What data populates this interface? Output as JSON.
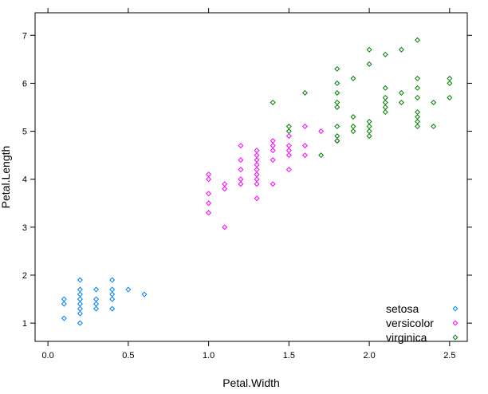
{
  "chart_data": {
    "type": "scatter",
    "xlabel": "Petal.Width",
    "ylabel": "Petal.Length",
    "xlim": [
      -0.08,
      2.61
    ],
    "ylim": [
      0.62,
      7.47
    ],
    "xticks": [
      "0.0",
      "0.5",
      "1.0",
      "1.5",
      "2.0",
      "2.5"
    ],
    "xtick_values": [
      0,
      0.5,
      1,
      1.5,
      2,
      2.5
    ],
    "yticks": [
      "1",
      "2",
      "3",
      "4",
      "5",
      "6",
      "7"
    ],
    "ytick_values": [
      1,
      2,
      3,
      4,
      5,
      6,
      7
    ],
    "grid": false,
    "marker": "diamond",
    "legend_position": "bottom-right",
    "series": [
      {
        "name": "setosa",
        "color": "#0080FF",
        "points": [
          [
            0.1,
            1.1
          ],
          [
            0.1,
            1.4
          ],
          [
            0.1,
            1.5
          ],
          [
            0.2,
            1.0
          ],
          [
            0.2,
            1.2
          ],
          [
            0.2,
            1.3
          ],
          [
            0.2,
            1.4
          ],
          [
            0.2,
            1.5
          ],
          [
            0.2,
            1.6
          ],
          [
            0.2,
            1.7
          ],
          [
            0.2,
            1.9
          ],
          [
            0.3,
            1.3
          ],
          [
            0.3,
            1.4
          ],
          [
            0.3,
            1.5
          ],
          [
            0.3,
            1.7
          ],
          [
            0.4,
            1.3
          ],
          [
            0.4,
            1.5
          ],
          [
            0.4,
            1.6
          ],
          [
            0.4,
            1.7
          ],
          [
            0.4,
            1.9
          ],
          [
            0.5,
            1.7
          ],
          [
            0.6,
            1.6
          ]
        ]
      },
      {
        "name": "versicolor",
        "color": "#FF00FF",
        "points": [
          [
            1.0,
            3.3
          ],
          [
            1.0,
            3.5
          ],
          [
            1.0,
            3.7
          ],
          [
            1.0,
            4.0
          ],
          [
            1.0,
            4.1
          ],
          [
            1.1,
            3.0
          ],
          [
            1.1,
            3.8
          ],
          [
            1.1,
            3.9
          ],
          [
            1.2,
            3.9
          ],
          [
            1.2,
            4.0
          ],
          [
            1.2,
            4.2
          ],
          [
            1.2,
            4.4
          ],
          [
            1.2,
            4.7
          ],
          [
            1.3,
            3.6
          ],
          [
            1.3,
            3.9
          ],
          [
            1.3,
            4.0
          ],
          [
            1.3,
            4.1
          ],
          [
            1.3,
            4.2
          ],
          [
            1.3,
            4.3
          ],
          [
            1.3,
            4.4
          ],
          [
            1.3,
            4.5
          ],
          [
            1.3,
            4.6
          ],
          [
            1.4,
            3.9
          ],
          [
            1.4,
            4.4
          ],
          [
            1.4,
            4.6
          ],
          [
            1.4,
            4.7
          ],
          [
            1.4,
            4.8
          ],
          [
            1.5,
            4.2
          ],
          [
            1.5,
            4.5
          ],
          [
            1.5,
            4.6
          ],
          [
            1.5,
            4.7
          ],
          [
            1.5,
            4.9
          ],
          [
            1.6,
            4.5
          ],
          [
            1.6,
            4.7
          ],
          [
            1.6,
            5.1
          ],
          [
            1.7,
            5.0
          ],
          [
            1.8,
            4.8
          ]
        ]
      },
      {
        "name": "virginica",
        "color": "#008000",
        "points": [
          [
            1.4,
            5.6
          ],
          [
            1.5,
            5.0
          ],
          [
            1.5,
            5.1
          ],
          [
            1.6,
            5.8
          ],
          [
            1.7,
            4.5
          ],
          [
            1.8,
            4.8
          ],
          [
            1.8,
            4.9
          ],
          [
            1.8,
            5.1
          ],
          [
            1.8,
            5.5
          ],
          [
            1.8,
            5.6
          ],
          [
            1.8,
            5.8
          ],
          [
            1.8,
            6.0
          ],
          [
            1.8,
            6.3
          ],
          [
            1.9,
            5.0
          ],
          [
            1.9,
            5.1
          ],
          [
            1.9,
            5.3
          ],
          [
            1.9,
            6.1
          ],
          [
            2.0,
            4.9
          ],
          [
            2.0,
            5.0
          ],
          [
            2.0,
            5.1
          ],
          [
            2.0,
            5.2
          ],
          [
            2.0,
            6.4
          ],
          [
            2.0,
            6.7
          ],
          [
            2.1,
            5.4
          ],
          [
            2.1,
            5.5
          ],
          [
            2.1,
            5.6
          ],
          [
            2.1,
            5.7
          ],
          [
            2.1,
            5.9
          ],
          [
            2.1,
            6.6
          ],
          [
            2.2,
            5.6
          ],
          [
            2.2,
            5.8
          ],
          [
            2.2,
            6.7
          ],
          [
            2.3,
            5.1
          ],
          [
            2.3,
            5.2
          ],
          [
            2.3,
            5.3
          ],
          [
            2.3,
            5.4
          ],
          [
            2.3,
            5.7
          ],
          [
            2.3,
            5.9
          ],
          [
            2.3,
            6.1
          ],
          [
            2.3,
            6.9
          ],
          [
            2.4,
            5.1
          ],
          [
            2.4,
            5.6
          ],
          [
            2.5,
            5.7
          ],
          [
            2.5,
            6.0
          ],
          [
            2.5,
            6.1
          ]
        ]
      }
    ]
  }
}
